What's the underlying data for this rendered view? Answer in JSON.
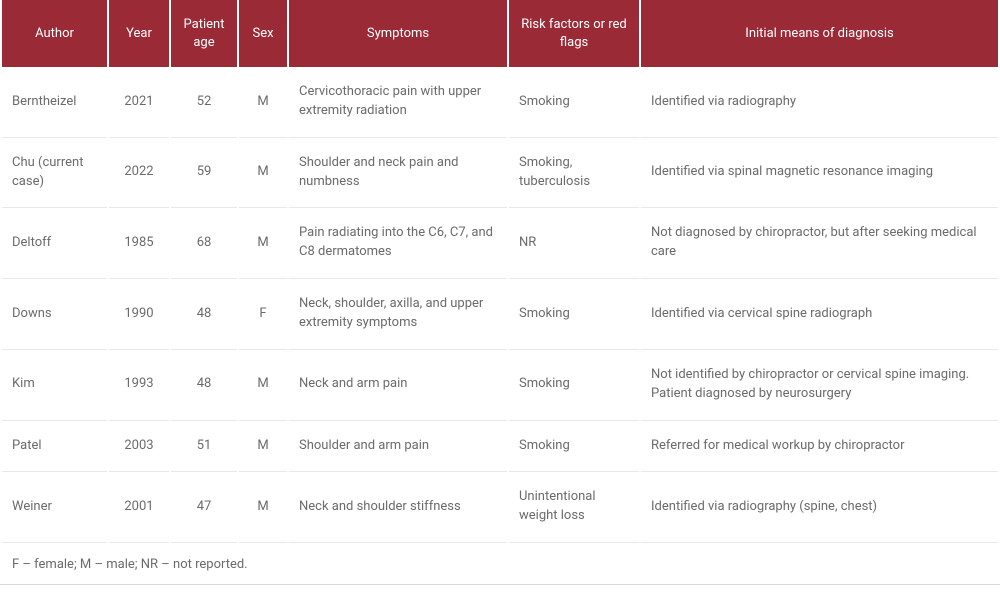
{
  "colors": {
    "header_bg": "#9a2a35",
    "header_fg": "#ffffff",
    "cell_fg": "#6b6b6b",
    "row_border": "#e8e8e8",
    "footnote_fg": "#6b6b6b"
  },
  "table": {
    "columns": [
      {
        "key": "author",
        "label": "Author",
        "align": "left"
      },
      {
        "key": "year",
        "label": "Year",
        "align": "center"
      },
      {
        "key": "age",
        "label": "Patient age",
        "align": "center"
      },
      {
        "key": "sex",
        "label": "Sex",
        "align": "center"
      },
      {
        "key": "symptoms",
        "label": "Symptoms",
        "align": "left"
      },
      {
        "key": "risk",
        "label": "Risk factors or red flags",
        "align": "left"
      },
      {
        "key": "diag",
        "label": "Initial means of diagnosis",
        "align": "left"
      }
    ],
    "rows": [
      {
        "author": "Berntheizel",
        "year": "2021",
        "age": "52",
        "sex": "M",
        "symptoms": "Cervicothoracic pain with upper extremity radiation",
        "risk": "Smoking",
        "diag": "Identified via radiography"
      },
      {
        "author": "Chu (current case)",
        "year": "2022",
        "age": "59",
        "sex": "M",
        "symptoms": "Shoulder and neck pain and numbness",
        "risk": "Smoking, tuberculosis",
        "diag": "Identified via spinal magnetic resonance imaging"
      },
      {
        "author": "Deltoff",
        "year": "1985",
        "age": "68",
        "sex": "M",
        "symptoms": "Pain radiating into the C6, C7, and C8 dermatomes",
        "risk": "NR",
        "diag": "Not diagnosed by chiropractor, but after seeking medical care"
      },
      {
        "author": "Downs",
        "year": "1990",
        "age": "48",
        "sex": "F",
        "symptoms": "Neck, shoulder, axilla, and upper extremity symptoms",
        "risk": "Smoking",
        "diag": "Identified via cervical spine radiograph"
      },
      {
        "author": "Kim",
        "year": "1993",
        "age": "48",
        "sex": "M",
        "symptoms": "Neck and arm pain",
        "risk": "Smoking",
        "diag": "Not identified by chiropractor or cervical spine imaging. Patient diagnosed by neurosurgery"
      },
      {
        "author": "Patel",
        "year": "2003",
        "age": "51",
        "sex": "M",
        "symptoms": "Shoulder and arm pain",
        "risk": "Smoking",
        "diag": "Referred for medical workup by chiropractor"
      },
      {
        "author": "Weiner",
        "year": "2001",
        "age": "47",
        "sex": "M",
        "symptoms": "Neck and shoulder stiffness",
        "risk": "Unintentional weight loss",
        "diag": "Identified via radiography (spine, chest)"
      }
    ],
    "footnote": "F – female; M – male; NR – not reported."
  }
}
